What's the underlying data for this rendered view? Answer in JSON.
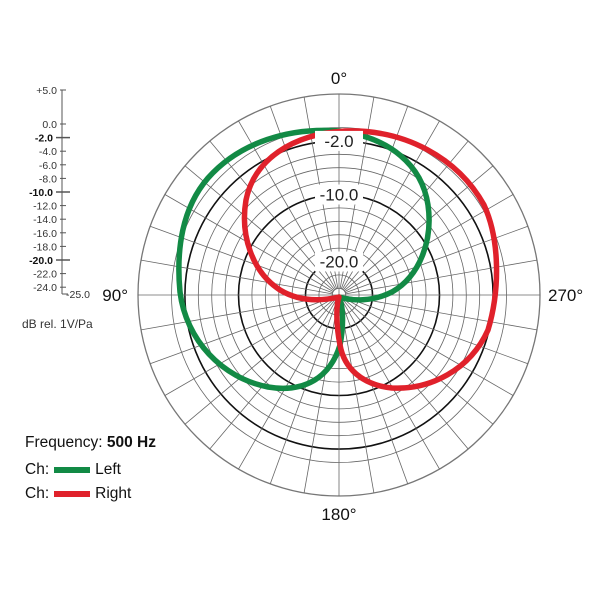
{
  "chart_data": {
    "type": "polar",
    "title": "",
    "frequency_label": "Frequency:",
    "frequency_value": "500 Hz",
    "unit_label": "dB rel. 1V/Pa",
    "radial_axis": {
      "max_label": "+5.0",
      "min_label": "-25.0",
      "range": [
        -25,
        5
      ],
      "ticks": [
        "+5.0",
        "0.0",
        "-2.0",
        "-4.0",
        "-6.0",
        "-8.0",
        "-10.0",
        "-12.0",
        "-14.0",
        "-16.0",
        "-18.0",
        "-20.0",
        "-22.0",
        "-24.0",
        "-25.0"
      ],
      "bold_ticks": [
        "-2.0",
        "-10.0",
        "-20.0"
      ],
      "ring_labels": [
        "-2.0",
        "-10.0",
        "-20.0"
      ]
    },
    "angle_labels": {
      "top": "0°",
      "left": "90°",
      "right": "270°",
      "bottom": "180°"
    },
    "angular_grid_step_deg": 10,
    "series": [
      {
        "name": "Left",
        "channel_label": "Ch:",
        "color": "#128a45",
        "pattern": "cardioid-like lobe pointing toward ~30-60° (upper-left), max ≈ -0.5 dB, null at rear-right"
      },
      {
        "name": "Right",
        "channel_label": "Ch:",
        "color": "#e0212b",
        "pattern": "cardioid-like lobe pointing toward ~300-330° (upper-right), max ≈ -0.5 dB, null at rear-left"
      }
    ]
  },
  "legend": {
    "frequency_label": "Frequency:",
    "frequency_value": "500 Hz",
    "items": [
      {
        "prefix": "Ch:",
        "label": "Left",
        "color": "#128a45"
      },
      {
        "prefix": "Ch:",
        "label": "Right",
        "color": "#e0212b"
      }
    ]
  }
}
